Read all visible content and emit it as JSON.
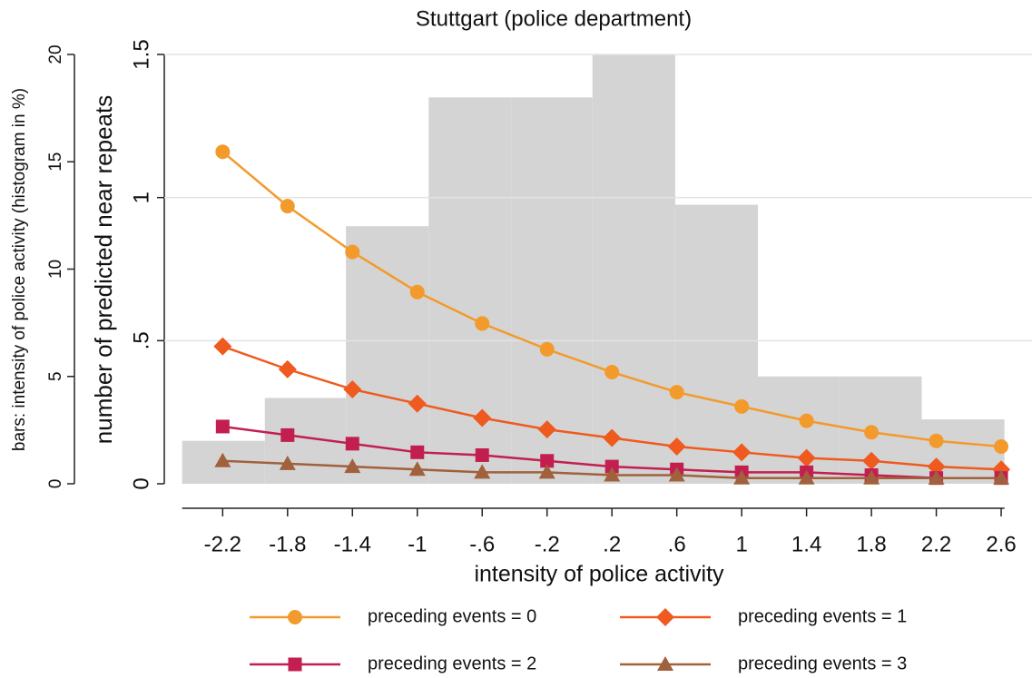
{
  "chart_data": {
    "type": "line",
    "title": "Stuttgart (police department)",
    "xlabel": "intensity of police activity",
    "ylabel": "number of predicted near repeats",
    "x": [
      -2.2,
      -1.8,
      -1.4,
      -1,
      -0.6,
      -0.2,
      0.2,
      0.6,
      1,
      1.4,
      1.8,
      2.2,
      2.6
    ],
    "xlim": [
      -2.56,
      2.79
    ],
    "xticks": [
      {
        "value": -2.2,
        "label": "-2.2"
      },
      {
        "value": -1.8,
        "label": "-1.8"
      },
      {
        "value": -1.4,
        "label": "-1.4"
      },
      -1,
      {
        "value": -0.6,
        "label": "-.6"
      },
      {
        "value": -0.2,
        "label": "-.2"
      },
      {
        "value": 0.2,
        "label": ".2"
      },
      {
        "value": 0.6,
        "label": ".6"
      },
      1,
      1.4,
      1.8,
      2.2,
      2.6
    ],
    "ylim": [
      0,
      1.5
    ],
    "yticks": [
      0,
      {
        "value": 0.5,
        "label": ".5"
      },
      1,
      1.5
    ],
    "grid": true,
    "series": [
      {
        "name": "preceding events = 0",
        "color": "#f39a2c",
        "marker": "circle",
        "values": [
          1.16,
          0.97,
          0.81,
          0.67,
          0.56,
          0.47,
          0.39,
          0.32,
          0.27,
          0.22,
          0.18,
          0.15,
          0.13
        ]
      },
      {
        "name": "preceding events = 1",
        "color": "#ef5a1e",
        "marker": "diamond",
        "values": [
          0.48,
          0.4,
          0.33,
          0.28,
          0.23,
          0.19,
          0.16,
          0.13,
          0.11,
          0.09,
          0.08,
          0.06,
          0.05
        ]
      },
      {
        "name": "preceding events = 2",
        "color": "#c21f50",
        "marker": "square",
        "values": [
          0.2,
          0.17,
          0.14,
          0.11,
          0.1,
          0.08,
          0.06,
          0.05,
          0.04,
          0.04,
          0.03,
          0.02,
          0.02
        ]
      },
      {
        "name": "preceding events = 3",
        "color": "#a0613c",
        "marker": "triangle",
        "values": [
          0.08,
          0.07,
          0.06,
          0.05,
          0.04,
          0.04,
          0.03,
          0.03,
          0.02,
          0.02,
          0.02,
          0.02,
          0.02
        ]
      }
    ],
    "histogram": {
      "ylabel": "bars: intensity of police activity (histogram in %)",
      "color": "#d4d4d4",
      "bins": [
        -2.45,
        -1.94,
        -1.44,
        -0.93,
        -0.42,
        0.08,
        0.59,
        1.1,
        1.6,
        2.11,
        2.62
      ],
      "values": [
        2,
        4,
        12,
        18,
        18,
        20,
        13,
        5,
        5,
        3
      ],
      "ylim": [
        0,
        20
      ],
      "yticks": [
        0,
        5,
        10,
        15,
        20
      ]
    }
  }
}
